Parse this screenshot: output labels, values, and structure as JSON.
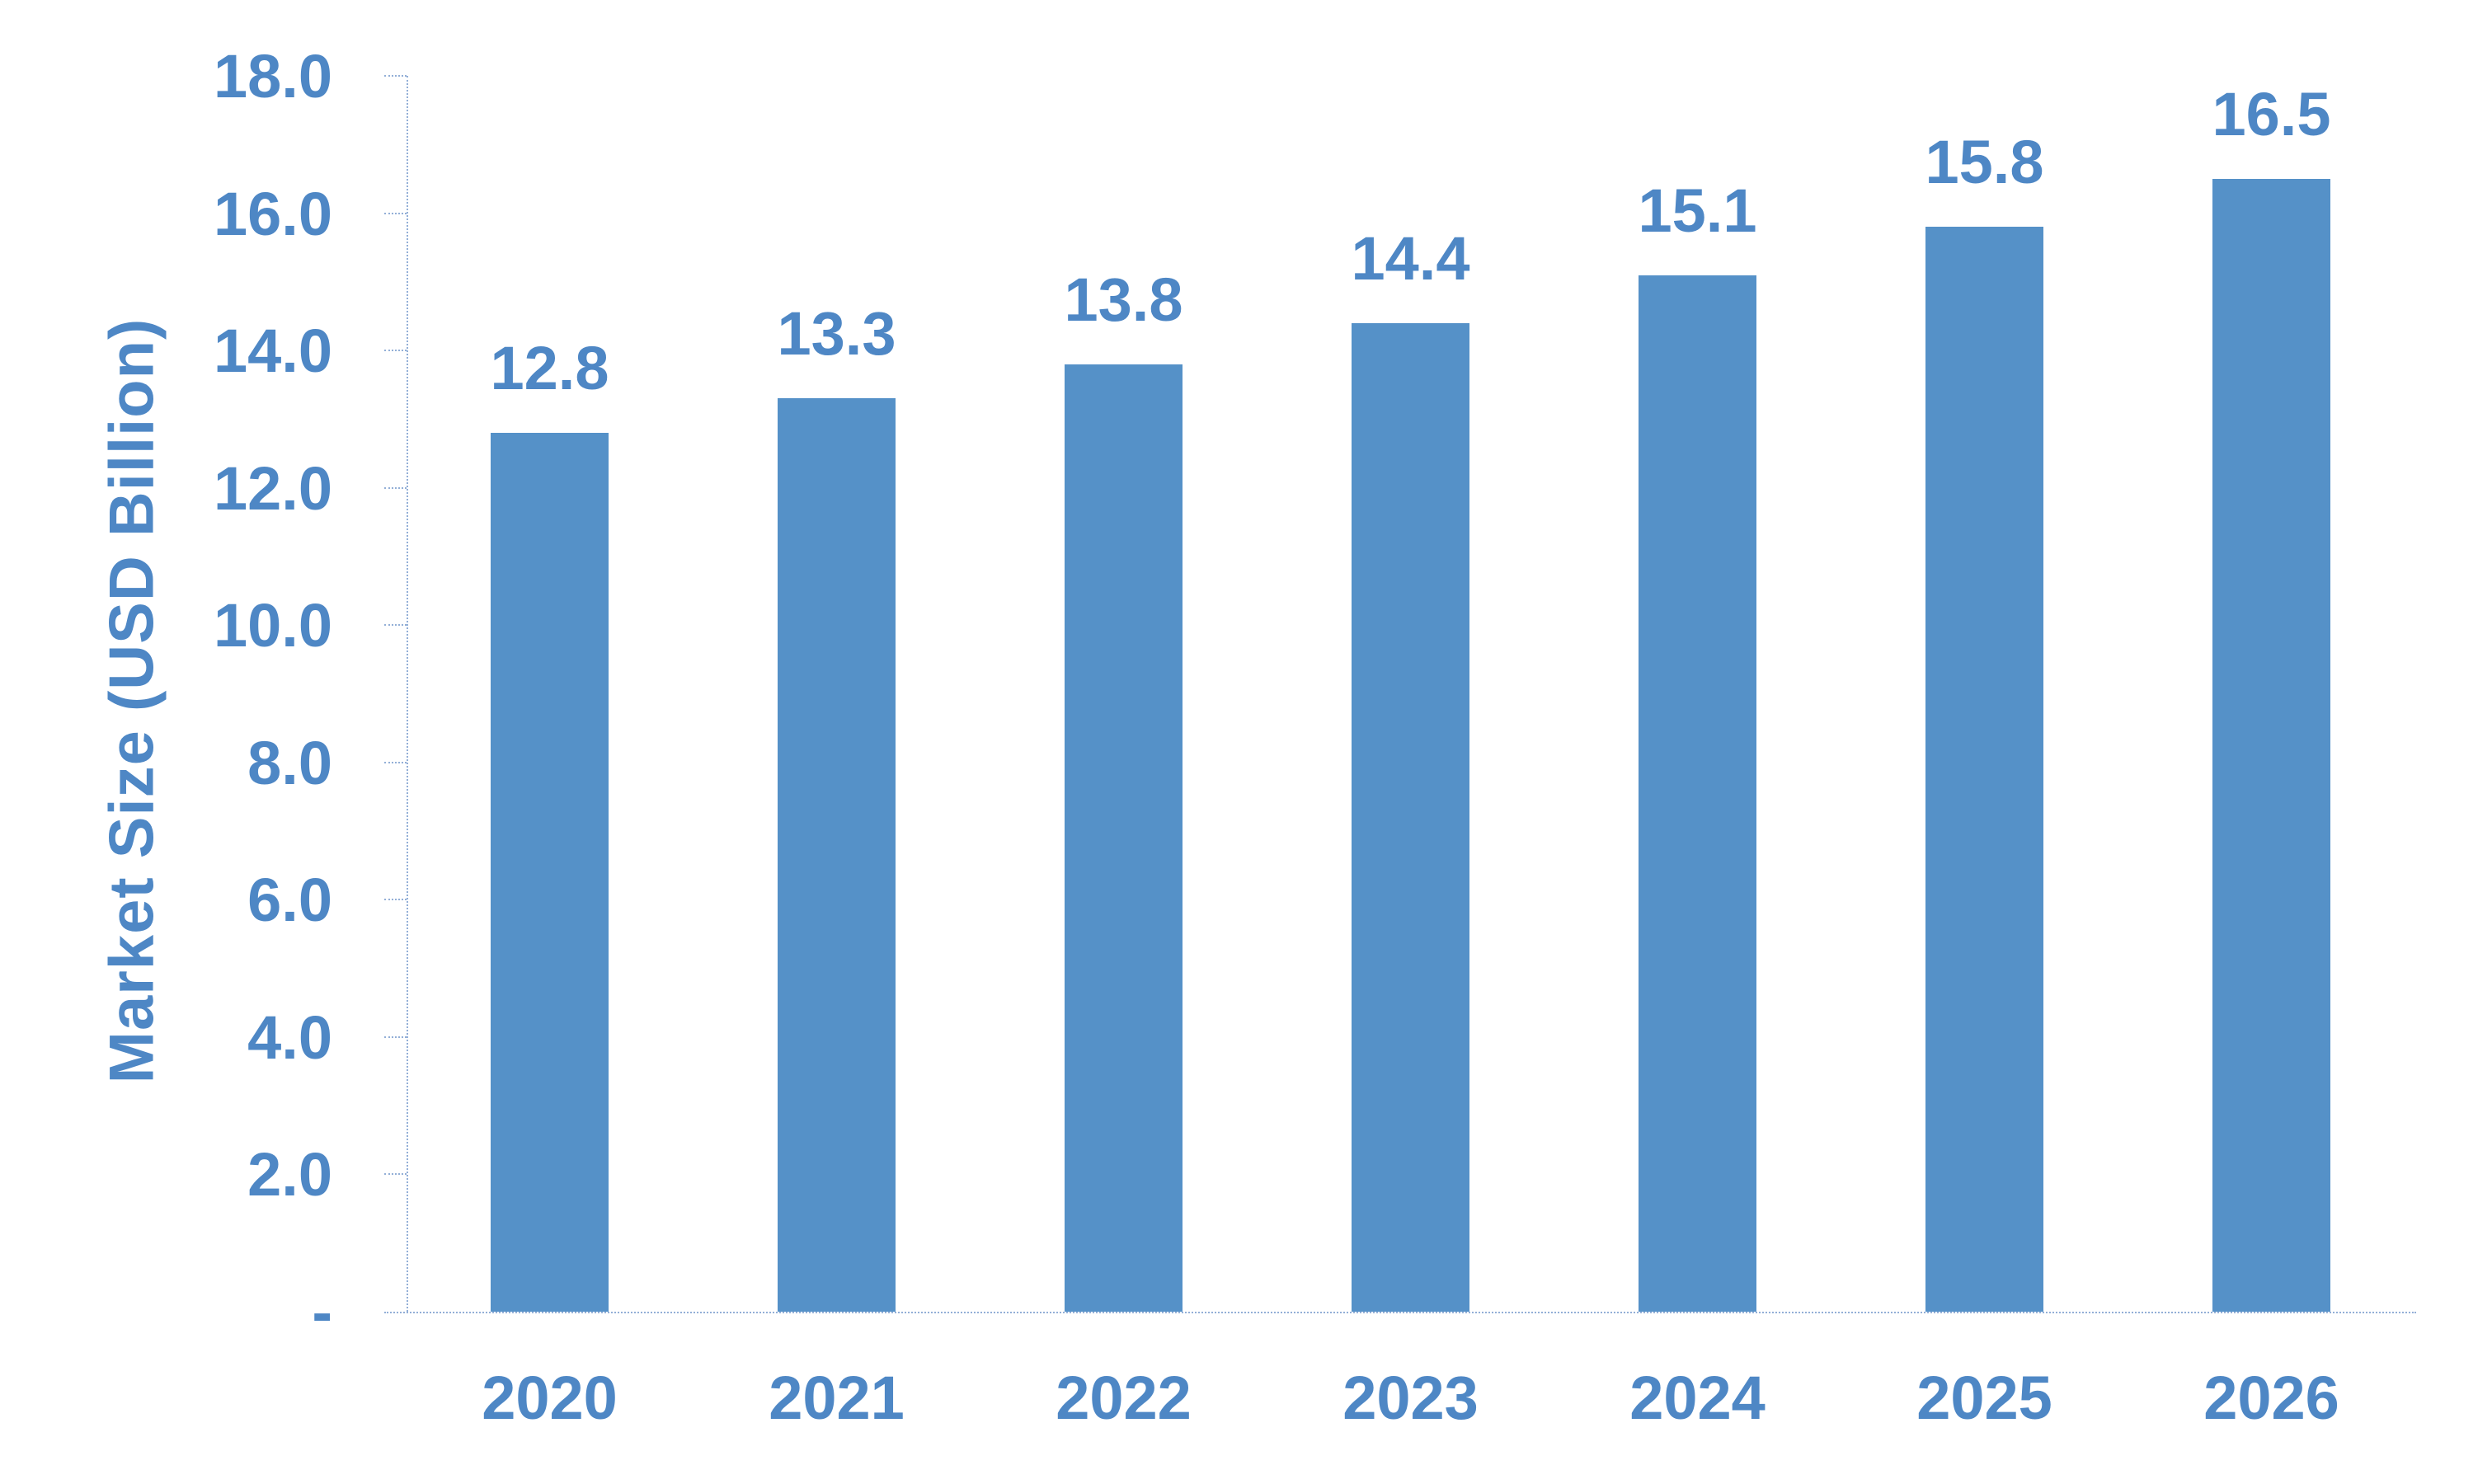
{
  "chart_data": {
    "type": "bar",
    "categories": [
      "2020",
      "2021",
      "2022",
      "2023",
      "2024",
      "2025",
      "2026"
    ],
    "values": [
      12.8,
      13.3,
      13.8,
      14.4,
      15.1,
      15.8,
      16.5
    ],
    "data_labels": [
      "12.8",
      "13.3",
      "13.8",
      "14.4",
      "15.1",
      "15.8",
      "16.5"
    ],
    "title": "",
    "xlabel": "",
    "ylabel": "Market Size (USD Billion)",
    "ylim": [
      0,
      18
    ],
    "y_tick_step": 2,
    "y_tick_labels": [
      "18.0",
      "16.0",
      "14.0",
      "12.0",
      "10.0",
      "8.0",
      "6.0",
      "4.0",
      "2.0",
      "-"
    ],
    "grid": false,
    "legend_position": "none",
    "bar_color": "#5591C8",
    "text_color": "#4E87C5",
    "axis_line_color": "#93AFD7"
  }
}
